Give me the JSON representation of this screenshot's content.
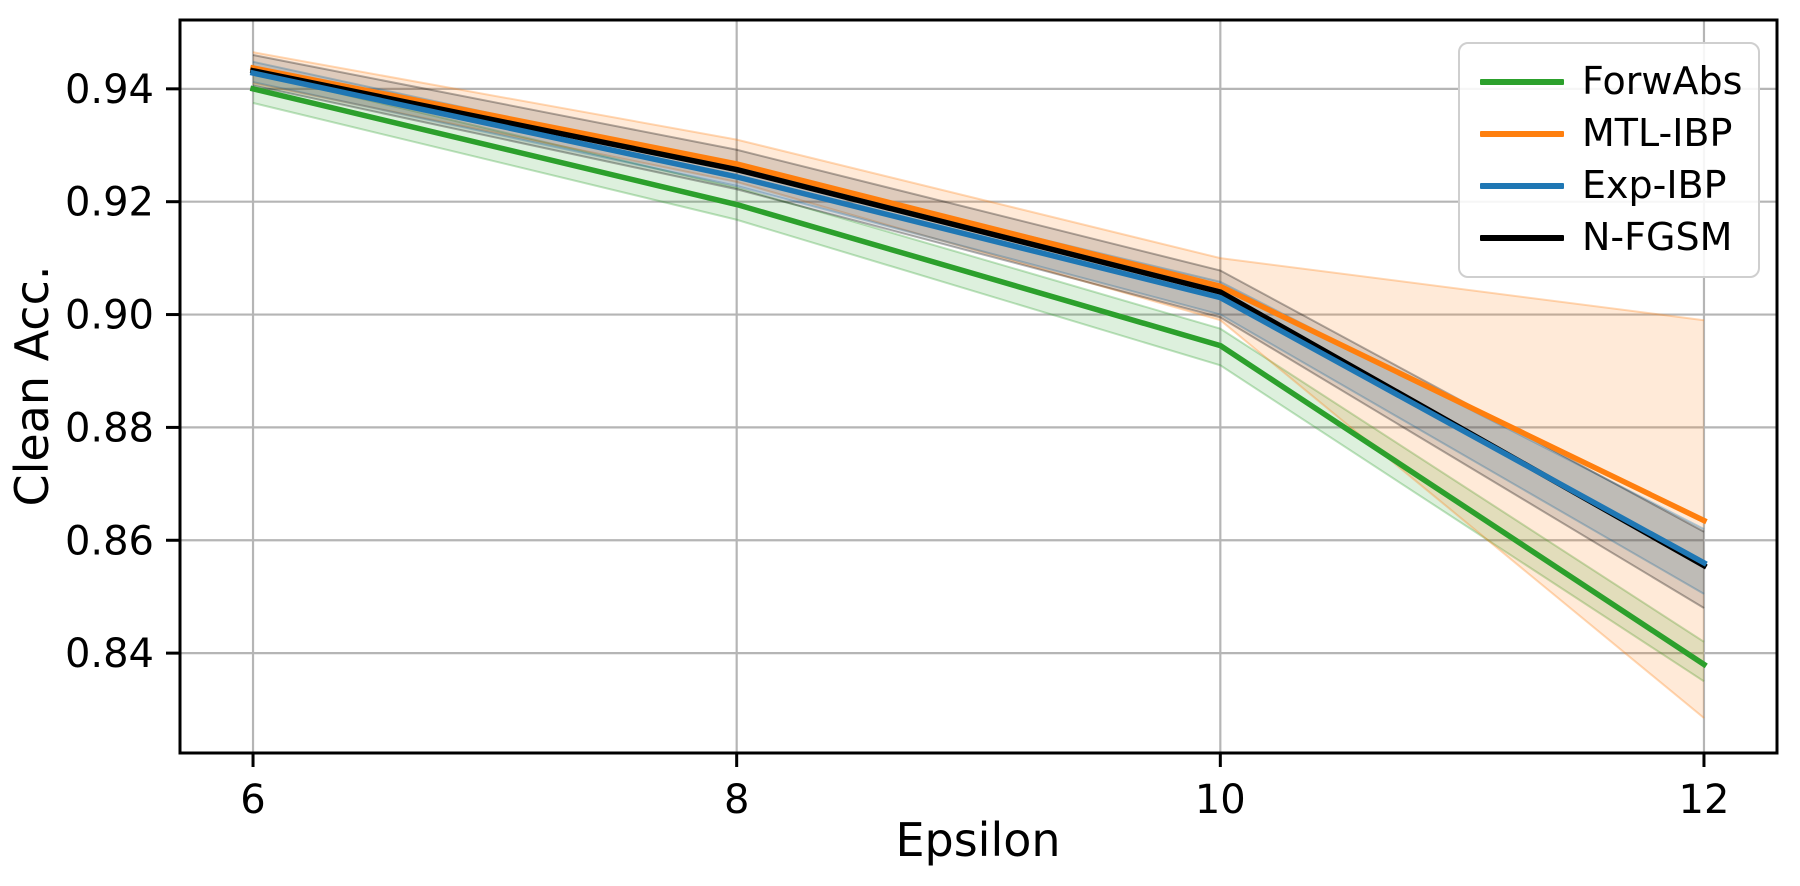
{
  "chart_data": {
    "type": "line",
    "title": "",
    "xlabel": "Epsilon",
    "ylabel": "Clean Acc.",
    "x": [
      6,
      8,
      10,
      12
    ],
    "xlim": [
      5.698,
      12.302
    ],
    "ylim": [
      0.8223,
      0.9522
    ],
    "xticks": [
      {
        "v": 6,
        "label": "6"
      },
      {
        "v": 8,
        "label": "8"
      },
      {
        "v": 10,
        "label": "10"
      },
      {
        "v": 12,
        "label": "12"
      }
    ],
    "yticks": [
      {
        "v": 0.84,
        "label": "0.84"
      },
      {
        "v": 0.86,
        "label": "0.86"
      },
      {
        "v": 0.88,
        "label": "0.88"
      },
      {
        "v": 0.9,
        "label": "0.90"
      },
      {
        "v": 0.92,
        "label": "0.92"
      },
      {
        "v": 0.94,
        "label": "0.94"
      }
    ],
    "grid": true,
    "legend_position": "upper right",
    "series": [
      {
        "name": "ForwAbs",
        "color": "#2ca02c",
        "band_alpha": 0.16,
        "values": [
          0.94,
          0.9195,
          0.8945,
          0.838
        ],
        "band_low": [
          0.9375,
          0.9168,
          0.891,
          0.835
        ],
        "band_high": [
          0.9428,
          0.9225,
          0.8975,
          0.842
        ]
      },
      {
        "name": "MTL-IBP",
        "color": "#ff7f0e",
        "band_alpha": 0.16,
        "values": [
          0.9437,
          0.9267,
          0.905,
          0.8635
        ],
        "band_low": [
          0.941,
          0.9235,
          0.899,
          0.8285
        ],
        "band_high": [
          0.9465,
          0.931,
          0.91,
          0.899
        ]
      },
      {
        "name": "Exp-IBP",
        "color": "#1f77b4",
        "band_alpha": 0.16,
        "values": [
          0.9428,
          0.9244,
          0.903,
          0.856
        ],
        "band_low": [
          0.9412,
          0.9228,
          0.9,
          0.8505
        ],
        "band_high": [
          0.9448,
          0.9262,
          0.9058,
          0.862
        ]
      },
      {
        "name": "N-FGSM",
        "color": "#000000",
        "band_alpha": 0.13,
        "values": [
          0.9432,
          0.9257,
          0.904,
          0.8555
        ],
        "band_low": [
          0.9406,
          0.9222,
          0.8995,
          0.848
        ],
        "band_high": [
          0.946,
          0.9292,
          0.9078,
          0.8615
        ]
      }
    ],
    "colors": {
      "background": "#ffffff",
      "grid": "#b5b5b5",
      "spine": "#000000",
      "legend_border": "#cfcfcf"
    }
  }
}
